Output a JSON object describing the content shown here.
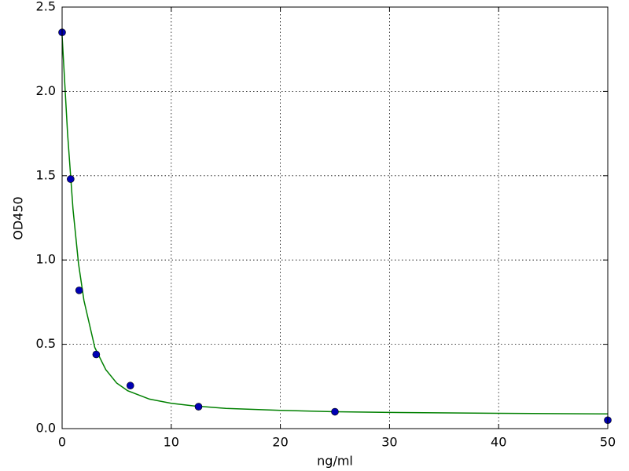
{
  "chart_data": {
    "type": "scatter",
    "xlabel": "ng/ml",
    "ylabel": "OD450",
    "xlim": [
      0,
      50
    ],
    "ylim": [
      0,
      2.5
    ],
    "xticks": [
      0,
      10,
      20,
      30,
      40,
      50
    ],
    "yticks": [
      {
        "value": 0,
        "label": "0.0"
      },
      0.5,
      {
        "value": 1,
        "label": "1.0"
      },
      1.5,
      {
        "value": 2,
        "label": "2.0"
      },
      2.5
    ],
    "grid": true,
    "series": [
      {
        "mode": "markers",
        "color": "#0000b4",
        "x": [
          0,
          0.78,
          1.56,
          3.125,
          6.25,
          12.5,
          25,
          50
        ],
        "values": [
          2.35,
          1.48,
          0.82,
          0.44,
          0.255,
          0.13,
          0.1,
          0.05
        ]
      },
      {
        "mode": "line",
        "color": "#008000",
        "x": [
          0,
          0.5,
          1,
          1.5,
          2,
          3,
          4,
          5,
          6,
          8,
          10,
          12,
          15,
          20,
          25,
          30,
          40,
          50
        ],
        "values": [
          2.33,
          1.75,
          1.3,
          0.98,
          0.76,
          0.48,
          0.35,
          0.27,
          0.225,
          0.175,
          0.15,
          0.135,
          0.12,
          0.108,
          0.1,
          0.096,
          0.091,
          0.087
        ]
      }
    ]
  }
}
